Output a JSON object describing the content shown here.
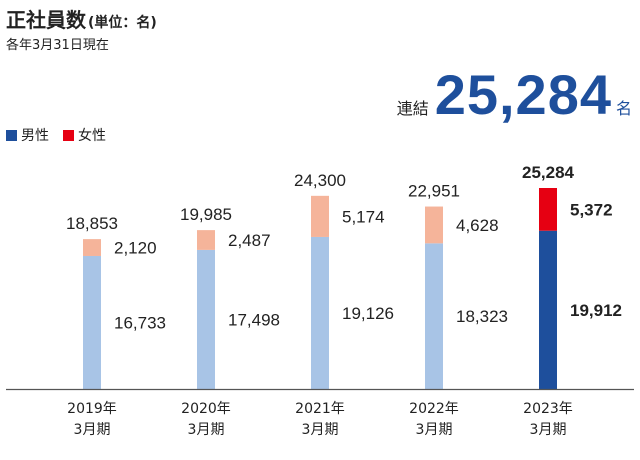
{
  "header": {
    "title": "正社員数",
    "unit": "(単位：名)",
    "subtitle": "各年3月31日現在"
  },
  "consolidated": {
    "label": "連結",
    "value": "25,284",
    "unit": "名"
  },
  "legend": [
    {
      "label": "男性",
      "color": "#1e4f9c"
    },
    {
      "label": "女性",
      "color": "#e60012"
    }
  ],
  "colors": {
    "male_muted": "#a8c4e6",
    "female_muted": "#f5b49a",
    "male_highlight": "#1e4f9c",
    "female_highlight": "#e60012",
    "axis": "#555555"
  },
  "chart_data": {
    "type": "bar",
    "stacked": true,
    "categories": [
      "2019年 3月期",
      "2020年 3月期",
      "2021年 3月期",
      "2022年 3月期",
      "2023年 3月期"
    ],
    "category_lines": [
      [
        "2019年",
        "3月期"
      ],
      [
        "2020年",
        "3月期"
      ],
      [
        "2021年",
        "3月期"
      ],
      [
        "2022年",
        "3月期"
      ],
      [
        "2023年",
        "3月期"
      ]
    ],
    "series": [
      {
        "name": "男性",
        "values": [
          16733,
          17498,
          19126,
          18323,
          19912
        ]
      },
      {
        "name": "女性",
        "values": [
          2120,
          2487,
          5174,
          4628,
          5372
        ]
      }
    ],
    "totals": [
      18853,
      19985,
      24300,
      22951,
      25284
    ],
    "value_labels": {
      "male": [
        "16,733",
        "17,498",
        "19,126",
        "18,323",
        "19,912"
      ],
      "female": [
        "2,120",
        "2,487",
        "5,174",
        "4,628",
        "5,372"
      ],
      "total": [
        "18,853",
        "19,985",
        "24,300",
        "22,951",
        "25,284"
      ]
    },
    "highlight_index": 4,
    "ylim": [
      0,
      25284
    ],
    "grid": false,
    "legend_position": "top-left"
  }
}
